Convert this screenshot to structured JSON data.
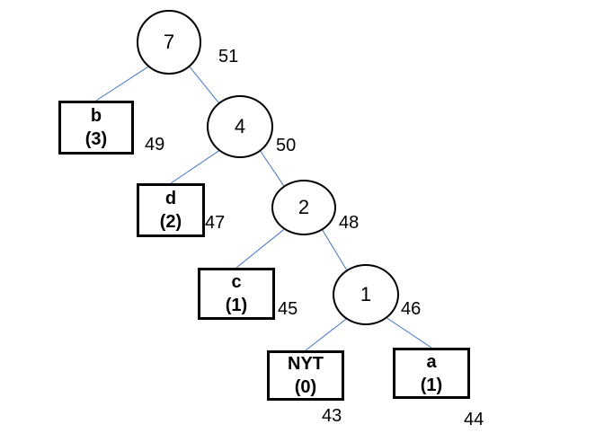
{
  "colors": {
    "edge": "#4472c4",
    "node_border": "#000000",
    "text": "#000000"
  },
  "internal_nodes": [
    {
      "id": "n51",
      "weight": "7",
      "number": "51"
    },
    {
      "id": "n50",
      "weight": "4",
      "number": "50"
    },
    {
      "id": "n48",
      "weight": "2",
      "number": "48"
    },
    {
      "id": "n46",
      "weight": "1",
      "number": "46"
    }
  ],
  "leaf_nodes": [
    {
      "id": "n49",
      "symbol": "b",
      "count": "(3)",
      "number": "49"
    },
    {
      "id": "n47",
      "symbol": "d",
      "count": "(2)",
      "number": "47"
    },
    {
      "id": "n45",
      "symbol": "c",
      "count": "(1)",
      "number": "45"
    },
    {
      "id": "n43",
      "symbol": "NYT",
      "count": "(0)",
      "number": "43"
    },
    {
      "id": "n44",
      "symbol": "a",
      "count": "(1)",
      "number": "44"
    }
  ],
  "edges": [
    [
      "n51",
      "n49"
    ],
    [
      "n51",
      "n50"
    ],
    [
      "n50",
      "n47"
    ],
    [
      "n50",
      "n48"
    ],
    [
      "n48",
      "n45"
    ],
    [
      "n48",
      "n46"
    ],
    [
      "n46",
      "n43"
    ],
    [
      "n46",
      "n44"
    ]
  ]
}
